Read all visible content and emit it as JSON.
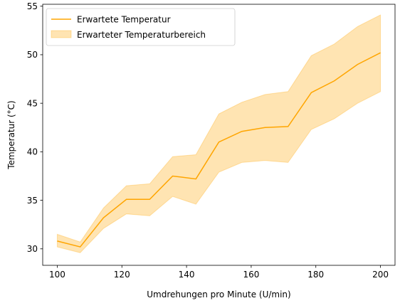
{
  "chart_data": {
    "type": "line",
    "xlabel": "Umdrehungen pro Minute (U/min)",
    "ylabel": "Temperatur (°C)",
    "xlim": [
      95.5,
      204.5
    ],
    "ylim": [
      28.3,
      55.2
    ],
    "xticks": [
      100,
      120,
      140,
      160,
      180,
      200
    ],
    "yticks": [
      30,
      35,
      40,
      45,
      50,
      55
    ],
    "x": [
      100,
      107.1,
      114.3,
      121.4,
      128.6,
      135.7,
      142.9,
      150,
      157.1,
      164.3,
      171.4,
      178.6,
      185.7,
      192.9,
      200
    ],
    "series": [
      {
        "name": "Erwartete Temperatur",
        "type": "line",
        "color": "#FFA500",
        "values": [
          30.8,
          30.2,
          33.2,
          35.1,
          35.1,
          37.5,
          37.2,
          41.0,
          42.1,
          42.5,
          42.6,
          46.1,
          47.3,
          49.0,
          50.2
        ]
      },
      {
        "name": "Erwarteter Temperaturbereich",
        "type": "area-band",
        "color": "#FFA500",
        "alpha": 0.3,
        "lower": [
          30.2,
          29.6,
          32.1,
          33.6,
          33.4,
          35.4,
          34.6,
          37.9,
          38.9,
          39.1,
          38.9,
          42.3,
          43.4,
          45.0,
          46.2
        ],
        "upper": [
          31.5,
          30.7,
          34.2,
          36.5,
          36.7,
          39.5,
          39.7,
          43.9,
          45.1,
          45.9,
          46.2,
          49.9,
          51.1,
          52.9,
          54.1
        ]
      }
    ],
    "legend_position": "top-left",
    "grid": false
  }
}
